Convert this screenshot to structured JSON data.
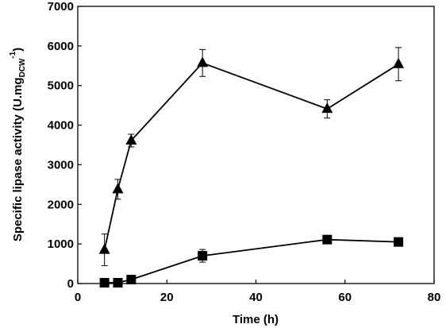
{
  "chart_data": {
    "type": "line",
    "xlabel": "Time (h)",
    "ylabel": {
      "main": "Specific lipase activity  (U.mg",
      "subscript": "DCW",
      "superscript": "-1",
      "close": ")"
    },
    "xlim": [
      0,
      80
    ],
    "ylim": [
      0,
      7000
    ],
    "x_ticks": [
      0,
      20,
      40,
      60,
      80
    ],
    "y_ticks": [
      0,
      1000,
      2000,
      3000,
      4000,
      5000,
      6000,
      7000
    ],
    "x_tick_labels": [
      "0",
      "20",
      "40",
      "60",
      "80"
    ],
    "y_tick_labels": [
      "0",
      "1000",
      "2000",
      "3000",
      "4000",
      "5000",
      "6000",
      "7000"
    ],
    "grid": false,
    "legend": "none",
    "series": [
      {
        "marker": "triangle",
        "color": "#000000",
        "x": [
          6,
          9,
          12,
          28,
          56,
          72
        ],
        "y": [
          850,
          2380,
          3610,
          5570,
          4410,
          5540
        ],
        "error": [
          400,
          250,
          160,
          340,
          230,
          420
        ]
      },
      {
        "marker": "square",
        "color": "#000000",
        "x": [
          6,
          9,
          12,
          28,
          56,
          72
        ],
        "y": [
          20,
          20,
          100,
          700,
          1110,
          1050
        ],
        "error": [
          0,
          0,
          50,
          160,
          60,
          50
        ]
      }
    ]
  }
}
